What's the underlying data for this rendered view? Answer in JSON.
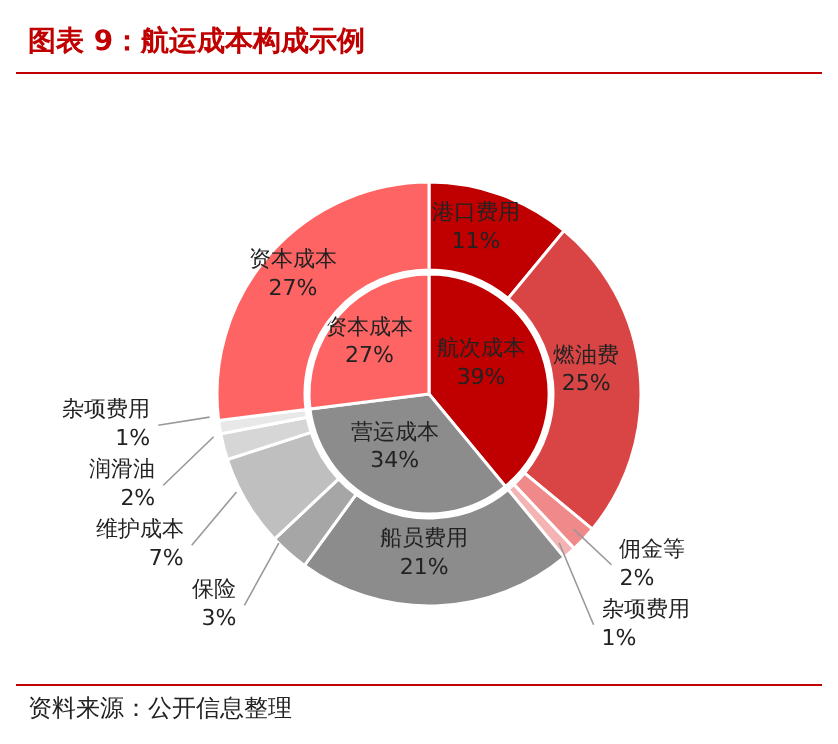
{
  "chart_data": [
    {
      "type": "pie",
      "title": "图表 9：航运成本构成示例",
      "annotations": [
        "资料来源：公开信息整理"
      ],
      "categories": [
        "航次成本",
        "营运成本",
        "资本成本"
      ],
      "values": [
        39,
        34,
        27
      ],
      "value_labels": [
        "39%",
        "34%",
        "27%"
      ],
      "colors": [
        "#c00000",
        "#8c8c8c",
        "#ff6464"
      ]
    },
    {
      "type": "donut",
      "categories": [
        "港口费用",
        "燃油费",
        "佣金等",
        "杂项费用",
        "船员费用",
        "保险",
        "维护成本",
        "润滑油",
        "杂项费用",
        "资本成本"
      ],
      "values": [
        11,
        25,
        2,
        1,
        21,
        3,
        7,
        2,
        1,
        27
      ],
      "value_labels": [
        "11%",
        "25%",
        "2%",
        "1%",
        "21%",
        "3%",
        "7%",
        "2%",
        "1%",
        "27%"
      ],
      "colors": [
        "#c00000",
        "#d94545",
        "#f08a8a",
        "#f4b4b4",
        "#8c8c8c",
        "#a6a6a6",
        "#bfbfbf",
        "#d6d6d6",
        "#e8e8e8",
        "#ff6464"
      ]
    }
  ]
}
